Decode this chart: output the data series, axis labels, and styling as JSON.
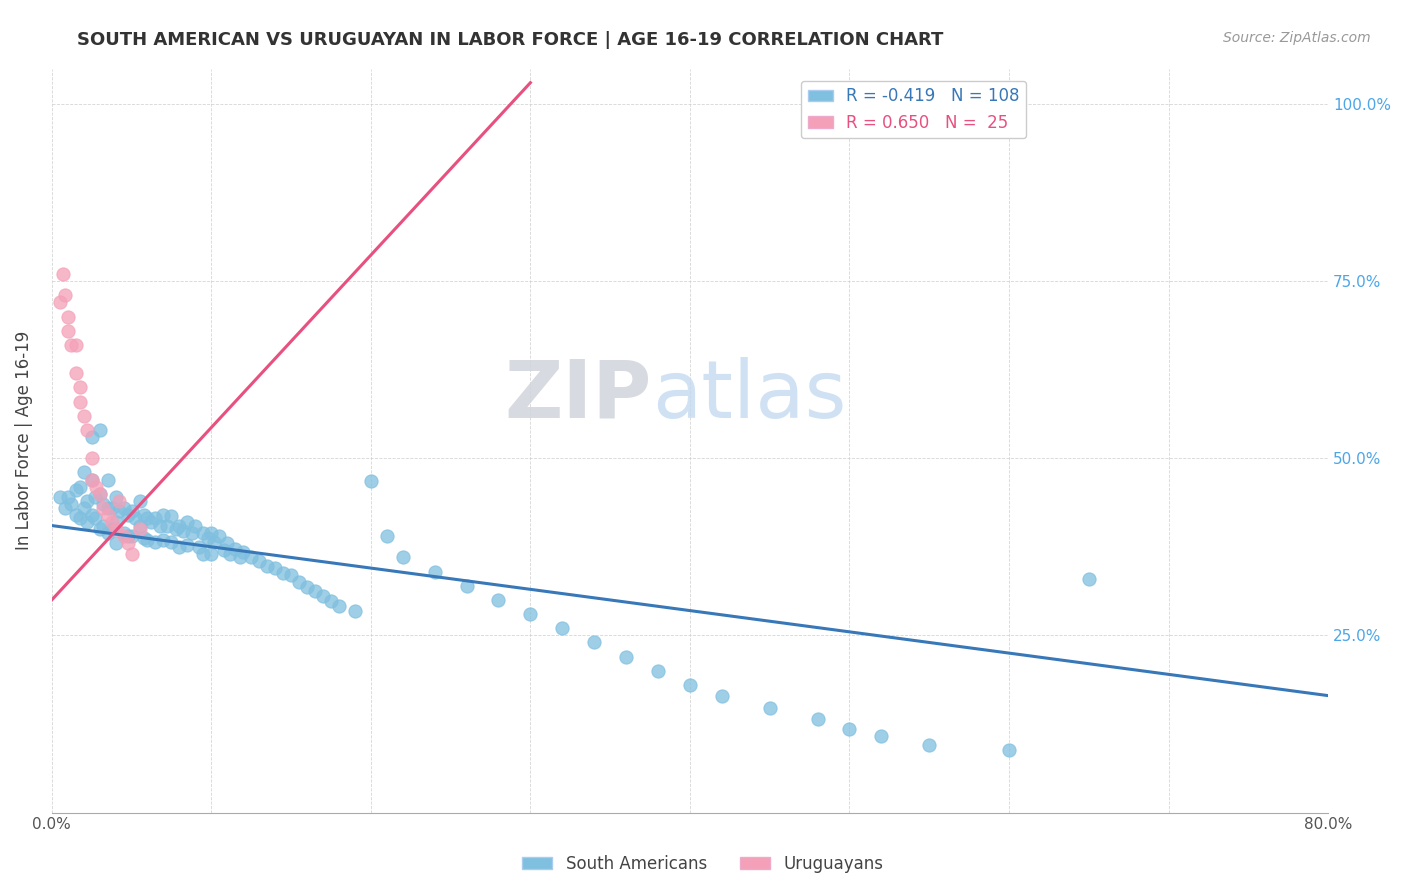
{
  "title": "SOUTH AMERICAN VS URUGUAYAN IN LABOR FORCE | AGE 16-19 CORRELATION CHART",
  "source": "Source: ZipAtlas.com",
  "ylabel": "In Labor Force | Age 16-19",
  "xmin": 0.0,
  "xmax": 0.8,
  "ymin": 0.0,
  "ymax": 1.05,
  "blue_color": "#7fbfdf",
  "pink_color": "#f4a0b8",
  "blue_line_color": "#3878b8",
  "pink_line_color": "#e85080",
  "legend_blue_R": "-0.419",
  "legend_blue_N": "108",
  "legend_pink_R": "0.650",
  "legend_pink_N": "25",
  "blue_trend_x0": 0.0,
  "blue_trend_x1": 0.8,
  "blue_trend_y0": 0.405,
  "blue_trend_y1": 0.165,
  "pink_trend_x0": 0.0,
  "pink_trend_x1": 0.3,
  "pink_trend_y0": 0.3,
  "pink_trend_y1": 1.03,
  "blue_scatter_x": [
    0.005,
    0.008,
    0.01,
    0.012,
    0.015,
    0.015,
    0.018,
    0.018,
    0.02,
    0.02,
    0.022,
    0.022,
    0.025,
    0.025,
    0.025,
    0.027,
    0.027,
    0.03,
    0.03,
    0.03,
    0.032,
    0.032,
    0.035,
    0.035,
    0.035,
    0.038,
    0.038,
    0.04,
    0.04,
    0.04,
    0.042,
    0.045,
    0.045,
    0.048,
    0.048,
    0.05,
    0.05,
    0.052,
    0.055,
    0.055,
    0.058,
    0.058,
    0.06,
    0.06,
    0.062,
    0.065,
    0.065,
    0.068,
    0.07,
    0.07,
    0.072,
    0.075,
    0.075,
    0.078,
    0.08,
    0.08,
    0.082,
    0.085,
    0.085,
    0.088,
    0.09,
    0.092,
    0.095,
    0.095,
    0.098,
    0.1,
    0.1,
    0.102,
    0.105,
    0.108,
    0.11,
    0.112,
    0.115,
    0.118,
    0.12,
    0.125,
    0.13,
    0.135,
    0.14,
    0.145,
    0.15,
    0.155,
    0.16,
    0.165,
    0.17,
    0.175,
    0.18,
    0.19,
    0.2,
    0.21,
    0.22,
    0.24,
    0.26,
    0.28,
    0.3,
    0.32,
    0.34,
    0.36,
    0.38,
    0.4,
    0.42,
    0.45,
    0.48,
    0.5,
    0.52,
    0.55,
    0.6,
    0.65
  ],
  "blue_scatter_y": [
    0.445,
    0.43,
    0.445,
    0.435,
    0.455,
    0.42,
    0.46,
    0.415,
    0.48,
    0.43,
    0.44,
    0.41,
    0.53,
    0.47,
    0.42,
    0.445,
    0.415,
    0.54,
    0.45,
    0.4,
    0.435,
    0.405,
    0.47,
    0.43,
    0.395,
    0.43,
    0.4,
    0.445,
    0.41,
    0.38,
    0.425,
    0.43,
    0.395,
    0.42,
    0.39,
    0.425,
    0.39,
    0.415,
    0.44,
    0.405,
    0.42,
    0.388,
    0.415,
    0.385,
    0.41,
    0.415,
    0.382,
    0.405,
    0.42,
    0.385,
    0.405,
    0.418,
    0.382,
    0.4,
    0.405,
    0.375,
    0.398,
    0.41,
    0.378,
    0.395,
    0.405,
    0.375,
    0.395,
    0.365,
    0.388,
    0.395,
    0.365,
    0.382,
    0.39,
    0.37,
    0.38,
    0.365,
    0.372,
    0.36,
    0.368,
    0.36,
    0.355,
    0.348,
    0.345,
    0.338,
    0.335,
    0.325,
    0.318,
    0.312,
    0.305,
    0.298,
    0.292,
    0.285,
    0.468,
    0.39,
    0.36,
    0.34,
    0.32,
    0.3,
    0.28,
    0.26,
    0.24,
    0.22,
    0.2,
    0.18,
    0.165,
    0.148,
    0.132,
    0.118,
    0.108,
    0.095,
    0.088,
    0.33
  ],
  "pink_scatter_x": [
    0.005,
    0.007,
    0.008,
    0.01,
    0.01,
    0.012,
    0.015,
    0.015,
    0.018,
    0.018,
    0.02,
    0.022,
    0.025,
    0.025,
    0.028,
    0.03,
    0.032,
    0.035,
    0.038,
    0.04,
    0.042,
    0.045,
    0.048,
    0.05,
    0.055
  ],
  "pink_scatter_y": [
    0.72,
    0.76,
    0.73,
    0.7,
    0.68,
    0.66,
    0.66,
    0.62,
    0.6,
    0.58,
    0.56,
    0.54,
    0.5,
    0.47,
    0.46,
    0.45,
    0.43,
    0.42,
    0.41,
    0.4,
    0.44,
    0.39,
    0.38,
    0.365,
    0.4
  ]
}
